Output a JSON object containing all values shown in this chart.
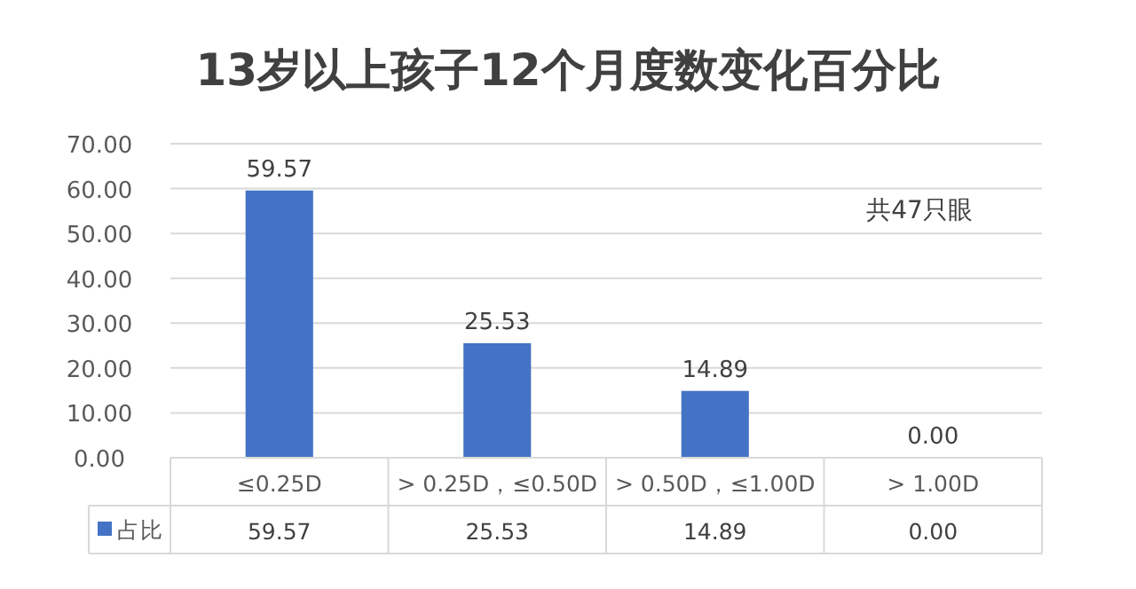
{
  "chart_data": {
    "type": "bar",
    "title": "13岁以上孩子12个月度数变化百分比",
    "categories": [
      "≤0.25D",
      "> 0.25D，≤0.50D",
      "> 0.50D，≤1.00D",
      "> 1.00D"
    ],
    "series": [
      {
        "name": "占比",
        "color": "#4472c4",
        "values": [
          59.57,
          25.53,
          14.89,
          0
        ],
        "value_labels": [
          "59.57",
          "25.53",
          "14.89",
          "0.00"
        ]
      }
    ],
    "ylim": [
      0,
      70
    ],
    "yticks": [
      {
        "value": 0,
        "label": "0.00"
      },
      {
        "value": 10,
        "label": "10.00"
      },
      {
        "value": 20,
        "label": "20.00"
      },
      {
        "value": 30,
        "label": "30.00"
      },
      {
        "value": 40,
        "label": "40.00"
      },
      {
        "value": 50,
        "label": "50.00"
      },
      {
        "value": 60,
        "label": "60.00"
      },
      {
        "value": 70,
        "label": "70.00"
      }
    ],
    "grid": "y",
    "legend": "bottom left",
    "annotations": [
      "共47只眼"
    ]
  }
}
